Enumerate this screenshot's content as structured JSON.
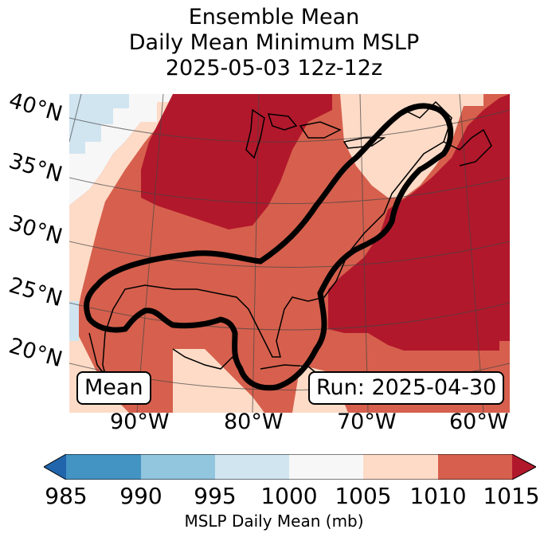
{
  "title": {
    "line1": "Ensemble Mean",
    "line2": "Daily Mean Minimum MSLP",
    "line3": "2025-05-03 12z-12z"
  },
  "lat_labels": [
    "40°N",
    "35°N",
    "30°N",
    "25°N",
    "20°N"
  ],
  "lon_labels": [
    "90°W",
    "80°W",
    "70°W",
    "60°W"
  ],
  "mean_label": "Mean",
  "run_label": "Run: 2025-04-30",
  "colorbar": {
    "label": "MSLP Daily Mean (mb)",
    "ticks": [
      "985",
      "990",
      "995",
      "1000",
      "1005",
      "1010",
      "1015"
    ],
    "colors": [
      "#2166ac",
      "#4393c3",
      "#92c5de",
      "#d1e5f0",
      "#f7f7f7",
      "#fddbc7",
      "#d6604d",
      "#b2182b"
    ]
  }
}
